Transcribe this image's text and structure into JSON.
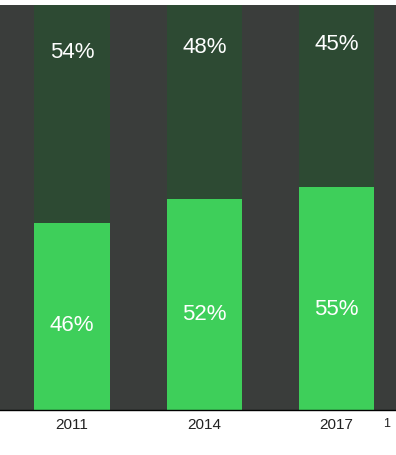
{
  "chart_data": {
    "type": "bar",
    "stacked": true,
    "data_labels": true,
    "tick_labels": "x",
    "categories": [
      "2011",
      "2014",
      "2017"
    ],
    "series": [
      {
        "color": "#3ecf5a",
        "values": [
          46,
          52,
          55
        ],
        "value_labels": [
          "46%",
          "52%",
          "55%"
        ]
      },
      {
        "color": "#2d4a33",
        "values": [
          54,
          48,
          45
        ],
        "value_labels": [
          "54%",
          "48%",
          "45%"
        ]
      }
    ],
    "ylim": [
      0,
      100
    ],
    "annotations": [
      "1"
    ]
  }
}
